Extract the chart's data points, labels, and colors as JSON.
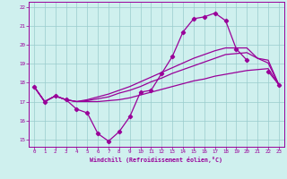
{
  "x": [
    0,
    1,
    2,
    3,
    4,
    5,
    6,
    7,
    8,
    9,
    10,
    11,
    12,
    13,
    14,
    15,
    16,
    17,
    18,
    19,
    20,
    21,
    22,
    23
  ],
  "line_main": [
    17.8,
    17.0,
    17.3,
    17.1,
    16.6,
    16.4,
    15.3,
    14.9,
    15.4,
    16.2,
    17.5,
    17.6,
    18.5,
    19.4,
    20.7,
    21.4,
    21.5,
    21.7,
    21.3,
    19.8,
    19.2,
    null,
    18.6,
    17.9
  ],
  "line_low": [
    17.8,
    17.0,
    17.3,
    17.1,
    17.0,
    17.0,
    17.0,
    17.05,
    17.1,
    17.2,
    17.35,
    17.5,
    17.65,
    17.8,
    17.95,
    18.1,
    18.2,
    18.35,
    18.45,
    18.55,
    18.65,
    18.7,
    18.75,
    17.9
  ],
  "line_mid": [
    17.8,
    17.0,
    17.3,
    17.1,
    17.0,
    17.05,
    17.15,
    17.25,
    17.45,
    17.6,
    17.8,
    18.05,
    18.25,
    18.5,
    18.7,
    18.9,
    19.1,
    19.3,
    19.5,
    19.55,
    19.6,
    19.3,
    19.2,
    17.9
  ],
  "line_high": [
    17.8,
    17.0,
    17.3,
    17.1,
    17.0,
    17.1,
    17.25,
    17.4,
    17.6,
    17.8,
    18.05,
    18.3,
    18.55,
    18.8,
    19.05,
    19.3,
    19.5,
    19.7,
    19.85,
    19.85,
    19.85,
    19.3,
    19.05,
    17.9
  ],
  "bg_color": "#cff0ee",
  "line_color": "#990099",
  "grid_color": "#99cccc",
  "tick_color": "#990099",
  "xlabel": "Windchill (Refroidissement éolien,°C)",
  "ylim": [
    14.6,
    22.3
  ],
  "xlim": [
    -0.5,
    23.5
  ],
  "yticks": [
    15,
    16,
    17,
    18,
    19,
    20,
    21,
    22
  ],
  "xticks": [
    0,
    1,
    2,
    3,
    4,
    5,
    6,
    7,
    8,
    9,
    10,
    11,
    12,
    13,
    14,
    15,
    16,
    17,
    18,
    19,
    20,
    21,
    22,
    23
  ]
}
